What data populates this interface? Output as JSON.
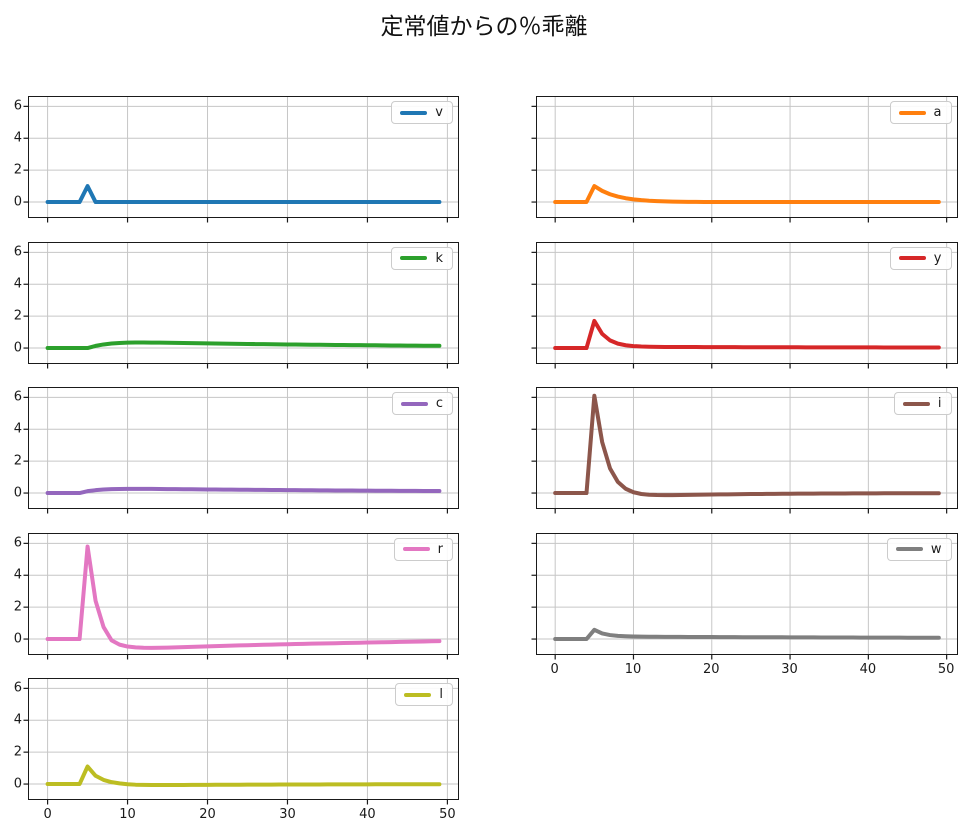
{
  "figure": {
    "title": "定常値からの％乖離"
  },
  "chart_data": {
    "type": "line",
    "title": "定常値からの％乖離",
    "layout": {
      "rows": 5,
      "cols": 2,
      "order": "row-major",
      "grid": true,
      "legend_position": "upper right",
      "shared_axes": true,
      "x_tick_labels_only_on": [
        "bottom-left-subplot-l",
        "bottom-right-subplot-w"
      ],
      "y_tick_labels_only_on": "left-column"
    },
    "xlim": [
      -2.45,
      51.45
    ],
    "ylim": [
      -1.0,
      6.65
    ],
    "xticks": [
      0,
      10,
      20,
      30,
      40,
      50
    ],
    "yticks": [
      0,
      2,
      4,
      6
    ],
    "grid_color": "#c6c6c6",
    "frame_color": "#1a1a1a",
    "x": [
      0,
      1,
      2,
      3,
      4,
      5,
      6,
      7,
      8,
      9,
      10,
      11,
      12,
      13,
      14,
      15,
      16,
      17,
      18,
      19,
      20,
      21,
      22,
      23,
      24,
      25,
      26,
      27,
      28,
      29,
      30,
      31,
      32,
      33,
      34,
      35,
      36,
      37,
      38,
      39,
      40,
      41,
      42,
      43,
      44,
      45,
      46,
      47,
      48,
      49
    ],
    "series": [
      {
        "name": "v",
        "color": "#1f77b4",
        "values": [
          0,
          0,
          0,
          0,
          0,
          1,
          0,
          0,
          0,
          0,
          0,
          0,
          0,
          0,
          0,
          0,
          0,
          0,
          0,
          0,
          0,
          0,
          0,
          0,
          0,
          0,
          0,
          0,
          0,
          0,
          0,
          0,
          0,
          0,
          0,
          0,
          0,
          0,
          0,
          0,
          0,
          0,
          0,
          0,
          0,
          0,
          0,
          0,
          0,
          0
        ]
      },
      {
        "name": "a",
        "color": "#ff7f0e",
        "values": [
          0,
          0,
          0,
          0,
          0,
          1,
          0.7,
          0.49,
          0.343,
          0.24,
          0.168,
          0.118,
          0.082,
          0.058,
          0.04,
          0.028,
          0.02,
          0.014,
          0.01,
          0.007,
          0.005,
          0.003,
          0.002,
          0.002,
          0.001,
          0.001,
          0.001,
          0,
          0,
          0,
          0,
          0,
          0,
          0,
          0,
          0,
          0,
          0,
          0,
          0,
          0,
          0,
          0,
          0,
          0,
          0,
          0,
          0,
          0,
          0
        ]
      },
      {
        "name": "k",
        "color": "#2ca02c",
        "values": [
          0,
          0,
          0,
          0,
          0,
          0,
          0.135,
          0.225,
          0.285,
          0.32,
          0.34,
          0.348,
          0.348,
          0.344,
          0.338,
          0.33,
          0.322,
          0.314,
          0.306,
          0.298,
          0.291,
          0.284,
          0.277,
          0.27,
          0.263,
          0.257,
          0.25,
          0.244,
          0.238,
          0.232,
          0.226,
          0.221,
          0.215,
          0.21,
          0.205,
          0.2,
          0.195,
          0.19,
          0.185,
          0.181,
          0.176,
          0.172,
          0.168,
          0.163,
          0.159,
          0.155,
          0.152,
          0.148,
          0.144,
          0.141
        ]
      },
      {
        "name": "y",
        "color": "#d62728",
        "values": [
          0,
          0,
          0,
          0,
          0,
          1.7,
          0.888,
          0.482,
          0.278,
          0.175,
          0.123,
          0.096,
          0.082,
          0.074,
          0.07,
          0.067,
          0.065,
          0.063,
          0.062,
          0.06,
          0.059,
          0.058,
          0.057,
          0.055,
          0.054,
          0.053,
          0.052,
          0.051,
          0.05,
          0.049,
          0.048,
          0.047,
          0.046,
          0.045,
          0.044,
          0.044,
          0.043,
          0.042,
          0.041,
          0.04,
          0.04,
          0.039,
          0.038,
          0.037,
          0.037,
          0.036,
          0.035,
          0.035,
          0.034,
          0.033
        ]
      },
      {
        "name": "c",
        "color": "#9467bd",
        "values": [
          0,
          0,
          0,
          0,
          0,
          0.12,
          0.18,
          0.22,
          0.245,
          0.258,
          0.263,
          0.264,
          0.262,
          0.259,
          0.255,
          0.25,
          0.245,
          0.24,
          0.235,
          0.231,
          0.226,
          0.222,
          0.217,
          0.213,
          0.209,
          0.204,
          0.2,
          0.196,
          0.193,
          0.189,
          0.185,
          0.181,
          0.178,
          0.174,
          0.171,
          0.167,
          0.164,
          0.161,
          0.157,
          0.154,
          0.151,
          0.148,
          0.145,
          0.142,
          0.139,
          0.137,
          0.134,
          0.131,
          0.129,
          0.126
        ]
      },
      {
        "name": "i",
        "color": "#8c564b",
        "values": [
          0,
          0,
          0,
          0,
          0,
          6.1,
          3.2,
          1.55,
          0.7,
          0.27,
          0.05,
          -0.06,
          -0.105,
          -0.125,
          -0.13,
          -0.128,
          -0.122,
          -0.115,
          -0.108,
          -0.1,
          -0.093,
          -0.086,
          -0.08,
          -0.074,
          -0.068,
          -0.063,
          -0.058,
          -0.054,
          -0.05,
          -0.046,
          -0.042,
          -0.039,
          -0.036,
          -0.033,
          -0.031,
          -0.028,
          -0.026,
          -0.024,
          -0.022,
          -0.02,
          -0.019,
          -0.017,
          -0.016,
          -0.015,
          -0.013,
          -0.012,
          -0.011,
          -0.01,
          -0.01,
          -0.009
        ]
      },
      {
        "name": "r",
        "color": "#e377c2",
        "values": [
          0,
          0,
          0,
          0,
          0,
          5.8,
          2.4,
          0.75,
          -0.08,
          -0.35,
          -0.47,
          -0.52,
          -0.545,
          -0.55,
          -0.545,
          -0.535,
          -0.52,
          -0.505,
          -0.49,
          -0.475,
          -0.46,
          -0.445,
          -0.43,
          -0.415,
          -0.4,
          -0.39,
          -0.375,
          -0.36,
          -0.35,
          -0.335,
          -0.325,
          -0.31,
          -0.3,
          -0.29,
          -0.28,
          -0.27,
          -0.26,
          -0.25,
          -0.24,
          -0.23,
          -0.22,
          -0.21,
          -0.2,
          -0.19,
          -0.18,
          -0.17,
          -0.16,
          -0.15,
          -0.14,
          -0.13
        ]
      },
      {
        "name": "w",
        "color": "#7f7f7f",
        "values": [
          0,
          0,
          0,
          0,
          0,
          0.58,
          0.35,
          0.25,
          0.2,
          0.175,
          0.16,
          0.15,
          0.145,
          0.141,
          0.138,
          0.135,
          0.133,
          0.131,
          0.129,
          0.127,
          0.125,
          0.123,
          0.121,
          0.119,
          0.117,
          0.116,
          0.114,
          0.112,
          0.11,
          0.109,
          0.107,
          0.105,
          0.104,
          0.102,
          0.101,
          0.099,
          0.098,
          0.096,
          0.095,
          0.093,
          0.092,
          0.09,
          0.089,
          0.088,
          0.086,
          0.085,
          0.084,
          0.082,
          0.081,
          0.08
        ]
      },
      {
        "name": "l",
        "color": "#bcbd22",
        "values": [
          0,
          0,
          0,
          0,
          0,
          1.1,
          0.52,
          0.26,
          0.12,
          0.04,
          -0.01,
          -0.04,
          -0.055,
          -0.06,
          -0.062,
          -0.061,
          -0.059,
          -0.057,
          -0.055,
          -0.052,
          -0.05,
          -0.047,
          -0.045,
          -0.043,
          -0.041,
          -0.039,
          -0.037,
          -0.035,
          -0.033,
          -0.031,
          -0.03,
          -0.028,
          -0.027,
          -0.025,
          -0.024,
          -0.023,
          -0.021,
          -0.02,
          -0.019,
          -0.018,
          -0.017,
          -0.016,
          -0.015,
          -0.014,
          -0.014,
          -0.013,
          -0.012,
          -0.011,
          -0.011,
          -0.01
        ]
      }
    ]
  }
}
